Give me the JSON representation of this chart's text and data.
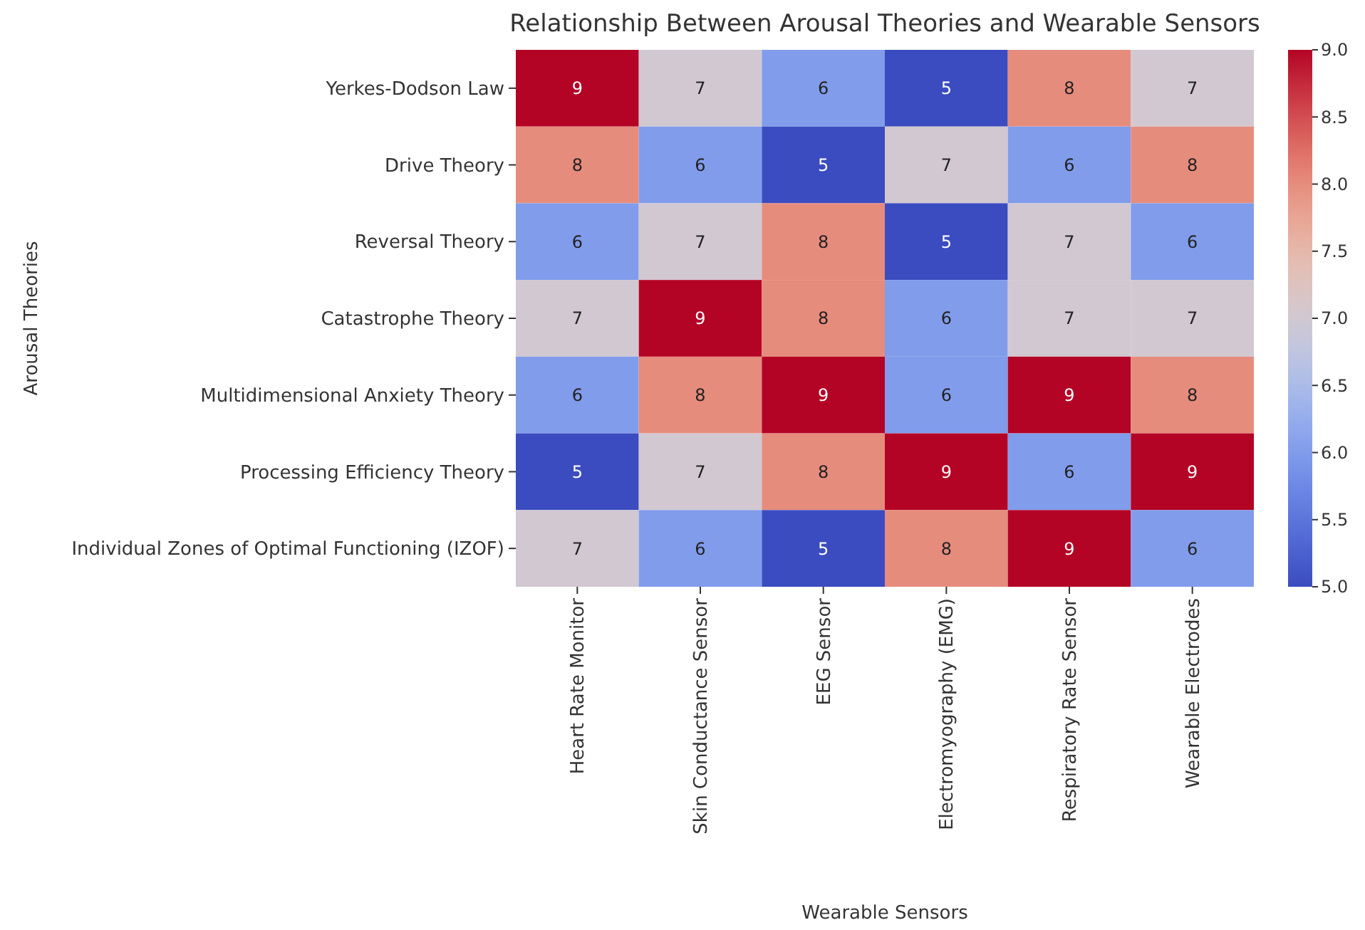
{
  "chart_data": {
    "type": "heatmap",
    "title": "Relationship Between Arousal Theories and Wearable Sensors",
    "xlabel": "Wearable Sensors",
    "ylabel": "Arousal Theories",
    "categories": [
      "Heart Rate Monitor",
      "Skin Conductance Sensor",
      "EEG Sensor",
      "Electromyography (EMG)",
      "Respiratory Rate Sensor",
      "Wearable Electrodes"
    ],
    "y_categories": [
      "Yerkes-Dodson Law",
      "Drive Theory",
      "Reversal Theory",
      "Catastrophe Theory",
      "Multidimensional Anxiety Theory",
      "Processing Efficiency Theory",
      "Individual Zones of Optimal Functioning (IZOF)"
    ],
    "cells": [
      [
        9,
        7,
        6,
        5,
        8,
        7
      ],
      [
        8,
        6,
        5,
        7,
        6,
        8
      ],
      [
        6,
        7,
        8,
        5,
        7,
        6
      ],
      [
        7,
        9,
        8,
        6,
        7,
        7
      ],
      [
        6,
        8,
        9,
        6,
        9,
        8
      ],
      [
        5,
        7,
        8,
        9,
        6,
        9
      ],
      [
        7,
        6,
        5,
        8,
        9,
        6
      ]
    ],
    "data_labels": true,
    "clim": [
      5,
      9
    ],
    "cticks": [
      {
        "value": 5,
        "label": "5.0"
      },
      {
        "value": 5.5,
        "label": "5.5"
      },
      {
        "value": 6,
        "label": "6.0"
      },
      {
        "value": 6.5,
        "label": "6.5"
      },
      {
        "value": 7,
        "label": "7.0"
      },
      {
        "value": 7.5,
        "label": "7.5"
      },
      {
        "value": 8,
        "label": "8.0"
      },
      {
        "value": 8.5,
        "label": "8.5"
      },
      {
        "value": 9,
        "label": "9.0"
      }
    ]
  }
}
